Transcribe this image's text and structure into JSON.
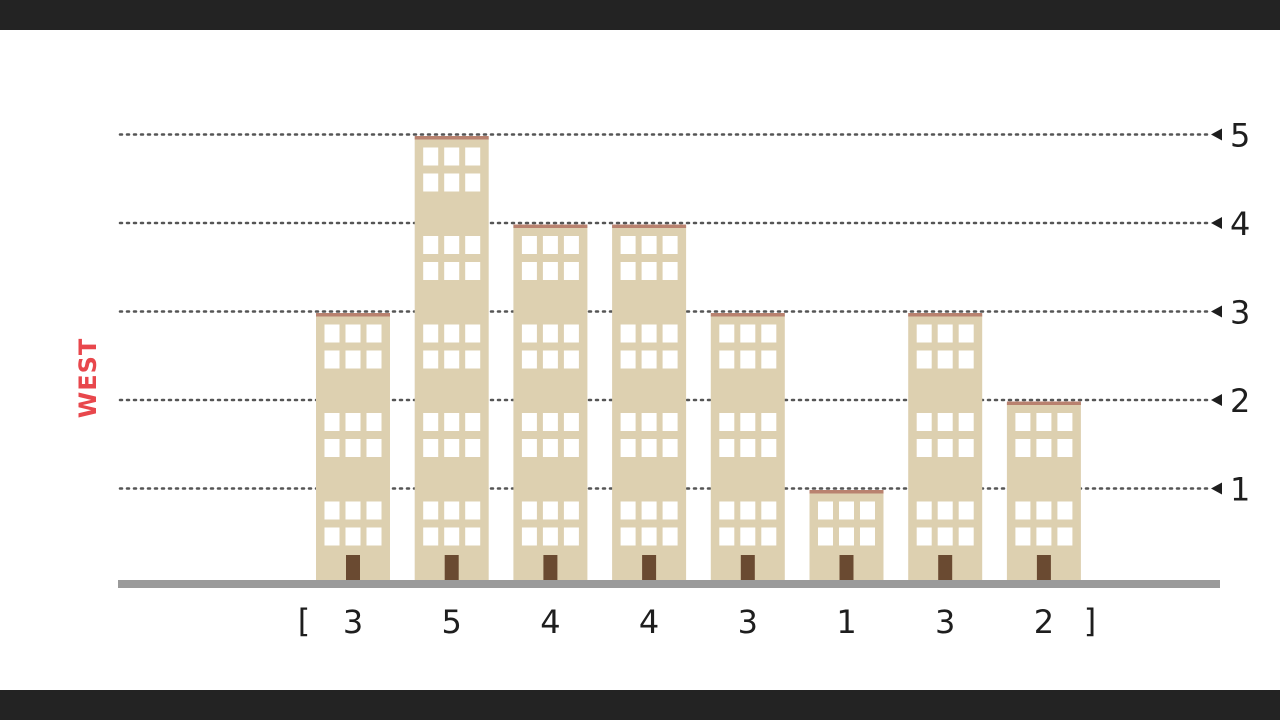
{
  "side_label": "WEST",
  "levels": [
    "1",
    "2",
    "3",
    "4",
    "5"
  ],
  "heights": [
    3,
    5,
    4,
    4,
    3,
    1,
    3,
    2
  ],
  "bracket_open": "[",
  "bracket_close": "]",
  "colors": {
    "building": "#ddd0b0",
    "roof": "#b9826f",
    "window": "#ffffff",
    "door": "#6a4a31",
    "ground": "#9a9a9a",
    "gridline": "#555555",
    "side_label": "#e8474c",
    "frame": "#232323"
  }
}
